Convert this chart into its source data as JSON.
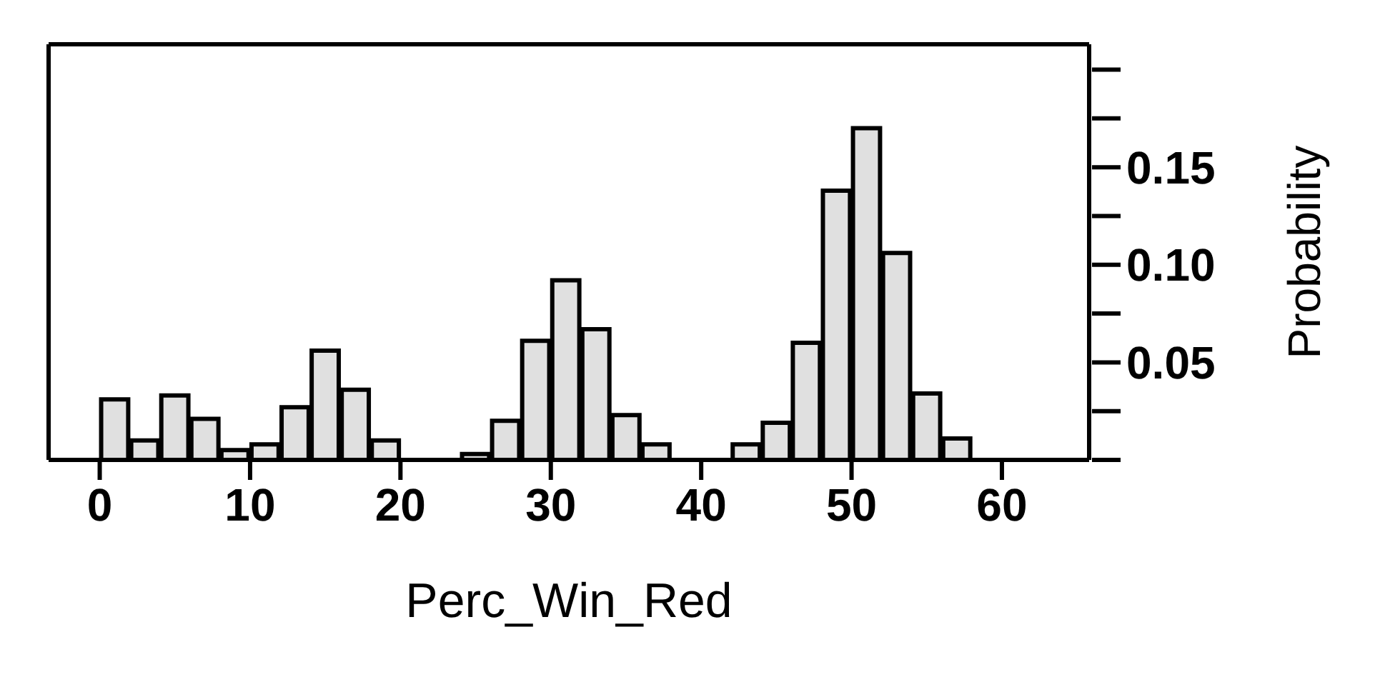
{
  "chart_data": {
    "type": "histogram",
    "xlabel": "Perc_Win_Red",
    "ylabel": "Probability",
    "bins": [
      0,
      2,
      4,
      6,
      8,
      10,
      12,
      14,
      16,
      18,
      20,
      22,
      24,
      26,
      28,
      30,
      32,
      34,
      36,
      38,
      40,
      42,
      44,
      46,
      48,
      50,
      52,
      54,
      56,
      58,
      60,
      62,
      64
    ],
    "values": [
      0.031,
      0.01,
      0.033,
      0.021,
      0.005,
      0.008,
      0.027,
      0.056,
      0.036,
      0.01,
      0,
      0,
      0.003,
      0.02,
      0.061,
      0.092,
      0.067,
      0.023,
      0.008,
      0,
      0,
      0.008,
      0.019,
      0.06,
      0.138,
      0.17,
      0.106,
      0.034,
      0.011,
      0,
      0,
      0
    ],
    "color": "#e0e0e0",
    "xlim": [
      -3.4,
      65.8
    ],
    "xticks": [
      0,
      10,
      20,
      30,
      40,
      50,
      60
    ],
    "ylim": [
      0,
      0.213
    ],
    "yticks": [
      {
        "value": 0,
        "label": null
      },
      {
        "value": 0.05,
        "label": "0.05"
      },
      {
        "value": 0.1,
        "label": "0.10"
      },
      {
        "value": 0.15,
        "label": "0.15"
      }
    ],
    "grid": false,
    "legend": false
  }
}
